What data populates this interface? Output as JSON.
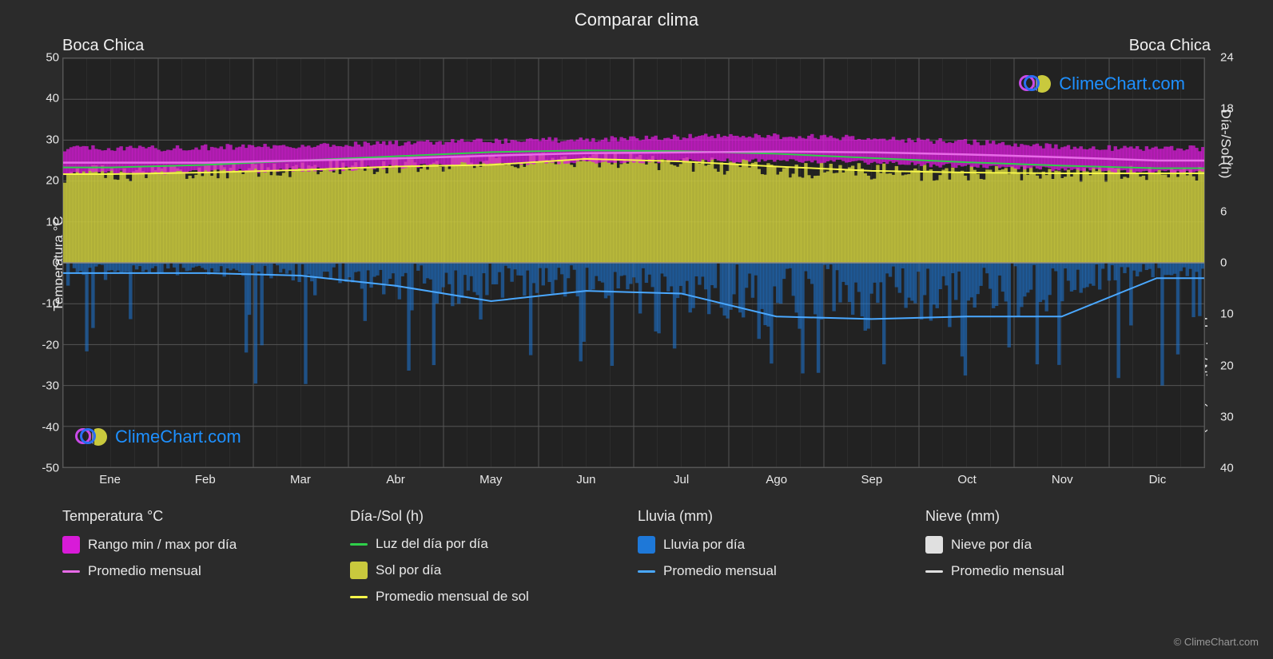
{
  "title": "Comparar clima",
  "location_left": "Boca Chica",
  "location_right": "Boca Chica",
  "watermark_text": "ClimeChart.com",
  "watermark_color": "#1e90ff",
  "copyright": "© ClimeChart.com",
  "background_color": "#2b2b2b",
  "plot_background": "#222222",
  "grid_color": "#555555",
  "text_color": "#e8e8e8",
  "y_left": {
    "label": "Temperatura °C",
    "min": -50,
    "max": 50,
    "tick_step": 10,
    "ticks": [
      50,
      40,
      30,
      20,
      10,
      0,
      -10,
      -20,
      -30,
      -40,
      -50
    ]
  },
  "y_right_top": {
    "label": "Día-/Sol (h)",
    "min": 0,
    "max": 24,
    "tick_step": 6,
    "ticks": [
      24,
      18,
      12,
      6,
      0
    ]
  },
  "y_right_bottom": {
    "label": "Lluvia / Nieve (mm)",
    "min": 0,
    "max": 40,
    "tick_step": 10,
    "ticks": [
      0,
      10,
      20,
      30,
      40
    ]
  },
  "x": {
    "labels": [
      "Ene",
      "Feb",
      "Mar",
      "Abr",
      "May",
      "Jun",
      "Jul",
      "Ago",
      "Sep",
      "Oct",
      "Nov",
      "Dic"
    ]
  },
  "colors": {
    "temp_range": "#d81bd8",
    "temp_avg": "#e86be8",
    "daylight": "#2fcf4a",
    "sun_bars": "#c9c93d",
    "sun_avg": "#f5f54a",
    "rain_bars": "#1e78d8",
    "rain_avg": "#4aa8ff",
    "snow_bars": "#e0e0e0",
    "snow_avg": "#e0e0e0"
  },
  "series": {
    "temp_avg": [
      24.5,
      24.5,
      25.0,
      25.5,
      26.2,
      26.8,
      27.0,
      27.2,
      27.0,
      26.5,
      25.8,
      25.0
    ],
    "temp_range_lo": [
      22.0,
      22.0,
      22.5,
      23.0,
      24.0,
      24.5,
      24.8,
      25.0,
      24.8,
      24.0,
      23.2,
      22.5
    ],
    "temp_range_hi": [
      28.0,
      28.0,
      28.5,
      29.0,
      29.5,
      30.0,
      30.5,
      31.0,
      30.8,
      30.0,
      29.0,
      28.0
    ],
    "daylight_h": [
      11.2,
      11.5,
      12.0,
      12.5,
      13.0,
      13.2,
      13.1,
      12.8,
      12.3,
      11.8,
      11.4,
      11.1
    ],
    "sun_avg_h": [
      10.4,
      10.6,
      10.9,
      11.3,
      11.5,
      12.2,
      11.9,
      11.3,
      10.8,
      10.6,
      10.5,
      10.5
    ],
    "rain_avg_mm": [
      2.0,
      2.0,
      2.5,
      4.5,
      7.5,
      5.5,
      6.0,
      10.5,
      11.0,
      10.5,
      10.5,
      3.0
    ],
    "snow_avg_mm": [
      0,
      0,
      0,
      0,
      0,
      0,
      0,
      0,
      0,
      0,
      0,
      0
    ]
  },
  "legend": {
    "groups": [
      {
        "title": "Temperatura °C",
        "items": [
          {
            "kind": "block",
            "color_key": "temp_range",
            "label": "Rango min / max por día"
          },
          {
            "kind": "line",
            "color_key": "temp_avg",
            "label": "Promedio mensual"
          }
        ]
      },
      {
        "title": "Día-/Sol (h)",
        "items": [
          {
            "kind": "line",
            "color_key": "daylight",
            "label": "Luz del día por día"
          },
          {
            "kind": "block",
            "color_key": "sun_bars",
            "label": "Sol por día"
          },
          {
            "kind": "line",
            "color_key": "sun_avg",
            "label": "Promedio mensual de sol"
          }
        ]
      },
      {
        "title": "Lluvia (mm)",
        "items": [
          {
            "kind": "block",
            "color_key": "rain_bars",
            "label": "Lluvia por día"
          },
          {
            "kind": "line",
            "color_key": "rain_avg",
            "label": "Promedio mensual"
          }
        ]
      },
      {
        "title": "Nieve (mm)",
        "items": [
          {
            "kind": "block",
            "color_key": "snow_bars",
            "label": "Nieve por día"
          },
          {
            "kind": "line",
            "color_key": "snow_avg",
            "label": "Promedio mensual"
          }
        ]
      }
    ]
  },
  "logo": {
    "ring1_color": "#c94ae8",
    "ring2_color": "#2a6df3",
    "sun_color": "#c9c93d"
  }
}
